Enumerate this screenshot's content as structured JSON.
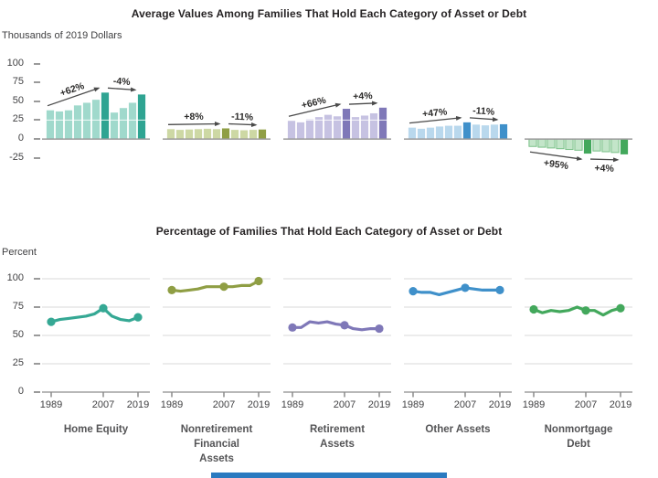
{
  "page": {
    "footer_bar": {
      "color": "#2a7ac0"
    }
  },
  "chart_data": [
    {
      "type": "bar",
      "panel": "top",
      "title": "Average Values Among Families That Hold Each Category of Asset or Debt",
      "ylabel": "Thousands of 2019 Dollars",
      "ylim": [
        -25,
        100
      ],
      "yticks": [
        100,
        75,
        50,
        25,
        0,
        -25
      ],
      "x": [
        1989,
        1992,
        1995,
        1998,
        2001,
        2004,
        2007,
        2010,
        2013,
        2016,
        2019
      ],
      "highlight_years": [
        2007,
        2019
      ],
      "grid": "off",
      "series": [
        {
          "name": "Home Equity",
          "color_light": "#a0d9cc",
          "color_dark": "#2fa492",
          "values": [
            38,
            36.5,
            38,
            44.5,
            48,
            52,
            61.5,
            35,
            41,
            48,
            59
          ],
          "annotations": [
            {
              "label": "+62%",
              "from_index": 0,
              "to_index": 6,
              "below": false
            },
            {
              "label": "-4%",
              "from_index": 6,
              "to_index": 10,
              "below": false
            }
          ]
        },
        {
          "name": "Nonretirement Financial Assets",
          "color_light": "#cdd8a4",
          "color_dark": "#8f9e44",
          "values": [
            13,
            12,
            12.5,
            13,
            13.5,
            13,
            14,
            12,
            11.5,
            12,
            12.5
          ],
          "annotations": [
            {
              "label": "+8%",
              "from_index": 0,
              "to_index": 6,
              "below": false
            },
            {
              "label": "-11%",
              "from_index": 6,
              "to_index": 10,
              "below": false
            }
          ]
        },
        {
          "name": "Retirement Assets",
          "color_light": "#c6c2e2",
          "color_dark": "#7f78b8",
          "values": [
            24,
            22,
            26,
            29,
            32,
            30,
            40,
            29,
            31,
            34,
            41.5
          ],
          "annotations": [
            {
              "label": "+66%",
              "from_index": 0,
              "to_index": 6,
              "below": false
            },
            {
              "label": "+4%",
              "from_index": 6,
              "to_index": 10,
              "below": false
            }
          ]
        },
        {
          "name": "Other Assets",
          "color_light": "#b9d8ed",
          "color_dark": "#3f90ca",
          "values": [
            15,
            13.5,
            15,
            16.5,
            17.5,
            17.5,
            22,
            19,
            18,
            19,
            19.5
          ],
          "annotations": [
            {
              "label": "+47%",
              "from_index": 0,
              "to_index": 6,
              "below": false
            },
            {
              "label": "-11%",
              "from_index": 6,
              "to_index": 10,
              "below": false
            }
          ]
        },
        {
          "name": "Nonmortgage Debt",
          "color_light": "#c3e5c9",
          "color_light_stroke": "#79c087",
          "color_dark": "#43a85c",
          "values": [
            -10,
            -11,
            -12,
            -13,
            -14,
            -15,
            -19.5,
            -16,
            -17,
            -18,
            -20.5
          ],
          "annotations": [
            {
              "label": "+95%",
              "from_index": 0,
              "to_index": 6,
              "below": true
            },
            {
              "label": "+4%",
              "from_index": 6,
              "to_index": 10,
              "below": true
            }
          ]
        }
      ]
    },
    {
      "type": "line",
      "panel": "bottom",
      "title": "Percentage of Families That Hold Each Category of Asset or Debt",
      "ylabel": "Percent",
      "ylim": [
        0,
        100
      ],
      "yticks": [
        100,
        75,
        50,
        25,
        0
      ],
      "x": [
        1989,
        1992,
        1995,
        1998,
        2001,
        2004,
        2007,
        2010,
        2013,
        2016,
        2019
      ],
      "x_tick_labels": [
        "1989",
        "2007",
        "2019"
      ],
      "marker_indices": [
        0,
        6,
        10
      ],
      "grid": "horizontal",
      "legend": "none",
      "series": [
        {
          "name": "Home Equity",
          "color": "#35a894",
          "values": [
            62,
            64,
            65,
            66,
            67,
            69,
            74,
            67,
            64,
            63,
            66
          ]
        },
        {
          "name": "Nonretirement Financial Assets",
          "color": "#8f9e44",
          "values": [
            90,
            89,
            90,
            91,
            93,
            93,
            93,
            93,
            94,
            94,
            98
          ]
        },
        {
          "name": "Retirement Assets",
          "color": "#7f78b8",
          "values": [
            57,
            57,
            62,
            61,
            62,
            60,
            59,
            56,
            55,
            56,
            56
          ]
        },
        {
          "name": "Other Assets",
          "color": "#3f90ca",
          "values": [
            89,
            88,
            88,
            86,
            88,
            90,
            92,
            91,
            90,
            90,
            90
          ]
        },
        {
          "name": "Nonmortgage Debt",
          "color": "#43a85c",
          "values": [
            73,
            70,
            72,
            71,
            72,
            75,
            72,
            72,
            68,
            72,
            74
          ]
        }
      ],
      "category_labels": [
        [
          "Home Equity"
        ],
        [
          "Nonretirement",
          "Financial",
          "Assets"
        ],
        [
          "Retirement",
          "Assets"
        ],
        [
          "Other Assets"
        ],
        [
          "Nonmortgage",
          "Debt"
        ]
      ]
    }
  ]
}
